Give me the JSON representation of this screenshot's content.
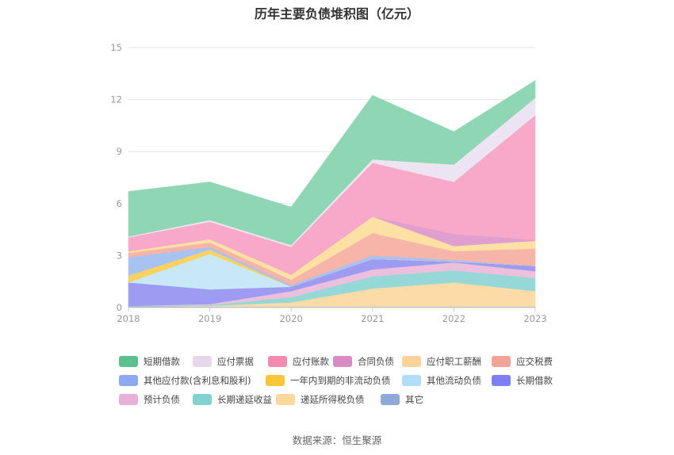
{
  "title": "历年主要负债堆积图（亿元）",
  "source": "数据来源：恒生聚源",
  "chart_data": {
    "type": "area",
    "stacked": true,
    "x": [
      "2018",
      "2019",
      "2020",
      "2021",
      "2022",
      "2023"
    ],
    "ylim": [
      0,
      15
    ],
    "yticks": [
      "0",
      "3",
      "6",
      "9",
      "12",
      "15"
    ],
    "grid": true,
    "legend_position": "bottom",
    "series": [
      {
        "name": "其它",
        "color": "#8eb0dc",
        "values": [
          0.1,
          0.05,
          0.05,
          0.05,
          0.05,
          0.05
        ]
      },
      {
        "name": "递延所得税负债",
        "color": "#fcdba6",
        "values": [
          0.0,
          0.05,
          0.25,
          1.05,
          1.4,
          0.9
        ]
      },
      {
        "name": "长期递延收益",
        "color": "#96d8d8",
        "values": [
          0.0,
          0.05,
          0.3,
          0.7,
          0.7,
          0.75
        ]
      },
      {
        "name": "预计负债",
        "color": "#ecc0dc",
        "values": [
          0.0,
          0.05,
          0.35,
          0.4,
          0.45,
          0.4
        ]
      },
      {
        "name": "长期借款",
        "color": "#9d9cf2",
        "values": [
          1.35,
          0.85,
          0.25,
          0.6,
          0.05,
          0.3
        ]
      },
      {
        "name": "其他流动负债",
        "color": "#c8e8f8",
        "values": [
          0.0,
          2.05,
          0.0,
          0.0,
          0.0,
          0.0
        ]
      },
      {
        "name": "一年内到期的非流动负债",
        "color": "#fbd260",
        "values": [
          0.4,
          0.25,
          0.0,
          0.0,
          0.0,
          0.0
        ]
      },
      {
        "name": "其他应付款(含利息和股利)",
        "color": "#a8c2f2",
        "values": [
          1.05,
          0.15,
          0.1,
          0.2,
          0.1,
          0.0
        ]
      },
      {
        "name": "应交税费",
        "color": "#f7b4a8",
        "values": [
          0.25,
          0.25,
          0.3,
          1.3,
          0.5,
          1.0
        ]
      },
      {
        "name": "应付职工薪酬",
        "color": "#fde0a4",
        "values": [
          0.1,
          0.2,
          0.3,
          0.95,
          0.3,
          0.45
        ]
      },
      {
        "name": "合同负债",
        "color": "#dfa0d0",
        "values": [
          0.0,
          0.0,
          0.0,
          0.0,
          0.7,
          0.05
        ]
      },
      {
        "name": "应付账款",
        "color": "#f8a8c8",
        "values": [
          0.8,
          1.0,
          1.6,
          3.1,
          3.0,
          7.2
        ]
      },
      {
        "name": "应付票据",
        "color": "#ece4f2",
        "values": [
          0.05,
          0.1,
          0.1,
          0.2,
          1.0,
          1.0
        ]
      },
      {
        "name": "短期借款",
        "color": "#8fd6b4",
        "values": [
          2.6,
          2.2,
          2.2,
          3.7,
          1.9,
          1.0
        ]
      }
    ]
  },
  "legend": [
    {
      "label": "短期借款",
      "color": "#5cc08e"
    },
    {
      "label": "应付票据",
      "color": "#e6d7ec"
    },
    {
      "label": "应付账款",
      "color": "#f48ab0"
    },
    {
      "label": "合同负债",
      "color": "#d98cc4"
    },
    {
      "label": "应付职工薪酬",
      "color": "#fcd49a"
    },
    {
      "label": "应交税费",
      "color": "#f4a496"
    },
    {
      "label": "其他应付款(含利息和股利)",
      "color": "#8fa8f2"
    },
    {
      "label": "一年内到期的非流动负债",
      "color": "#fbc53a"
    },
    {
      "label": "其他流动负债",
      "color": "#b0def6"
    },
    {
      "label": "长期借款",
      "color": "#7f7ff2"
    },
    {
      "label": "预计负债",
      "color": "#e8b2d8"
    },
    {
      "label": "长期递延收益",
      "color": "#82d2d2"
    },
    {
      "label": "递延所得税负债",
      "color": "#fcd89c"
    },
    {
      "label": "其它",
      "color": "#8eaad8"
    }
  ]
}
